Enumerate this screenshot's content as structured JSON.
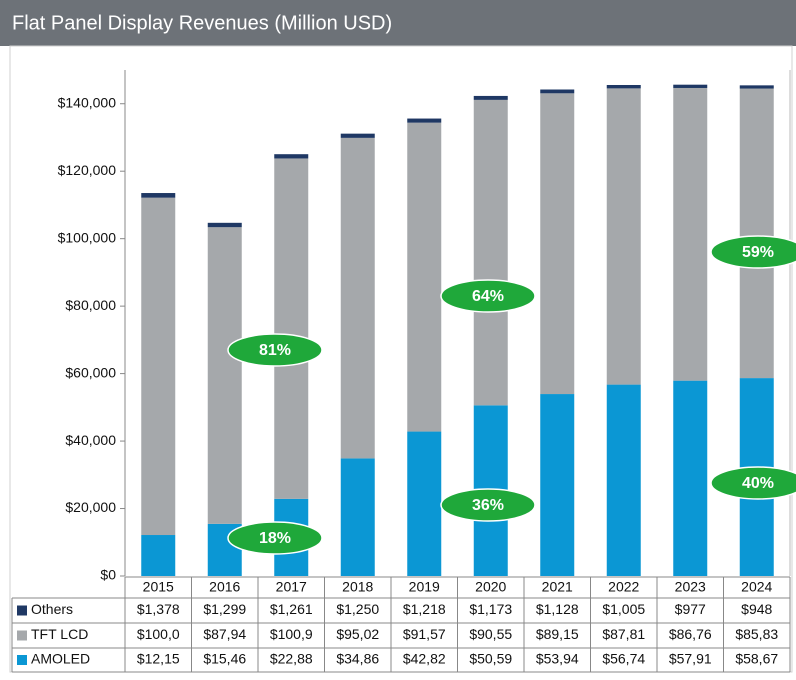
{
  "chart_data": {
    "type": "bar",
    "stacked": true,
    "title": "Flat Panel Display Revenues (Million USD)",
    "categories": [
      "2015",
      "2016",
      "2017",
      "2018",
      "2019",
      "2020",
      "2021",
      "2022",
      "2023",
      "2024"
    ],
    "series": [
      {
        "name": "Others",
        "color": "#1f3864",
        "values": [
          1378,
          1299,
          1261,
          1250,
          1218,
          1173,
          1128,
          1005,
          977,
          948
        ],
        "value_labels": [
          "$1,378",
          "$1,299",
          "$1,261",
          "$1,250",
          "$1,218",
          "$1,173",
          "$1,128",
          "$1,005",
          "$977",
          "$948"
        ]
      },
      {
        "name": "TFT LCD",
        "color": "#a5a8ab",
        "values": [
          100000,
          87940,
          100900,
          95020,
          91570,
          90550,
          89150,
          87810,
          86760,
          85830
        ],
        "value_labels": [
          "$100,0",
          "$87,94",
          "$100,9",
          "$95,02",
          "$91,57",
          "$90,55",
          "$89,15",
          "$87,81",
          "$86,76",
          "$85,83"
        ]
      },
      {
        "name": "AMOLED",
        "color": "#0b97d4",
        "values": [
          12150,
          15460,
          22880,
          34860,
          42820,
          50590,
          53940,
          56740,
          57910,
          58670
        ],
        "value_labels": [
          "$12,15",
          "$15,46",
          "$22,88",
          "$34,86",
          "$42,82",
          "$50,59",
          "$53,94",
          "$56,74",
          "$57,91",
          "$58,67"
        ]
      }
    ],
    "ylim": [
      0,
      150000
    ],
    "yticks": [
      {
        "value": 0,
        "label": "$0"
      },
      {
        "value": 20000,
        "label": "$20,000"
      },
      {
        "value": 40000,
        "label": "$40,000"
      },
      {
        "value": 60000,
        "label": "$60,000"
      },
      {
        "value": 80000,
        "label": "$80,000"
      },
      {
        "value": 100000,
        "label": "$100,000"
      },
      {
        "value": 120000,
        "label": "$120,000"
      },
      {
        "value": 140000,
        "label": "$140,000"
      }
    ],
    "grid": false,
    "annotations": [
      "81%",
      "18%",
      "64%",
      "36%",
      "59%",
      "40%"
    ],
    "annotation_color": "#1fa83a"
  }
}
